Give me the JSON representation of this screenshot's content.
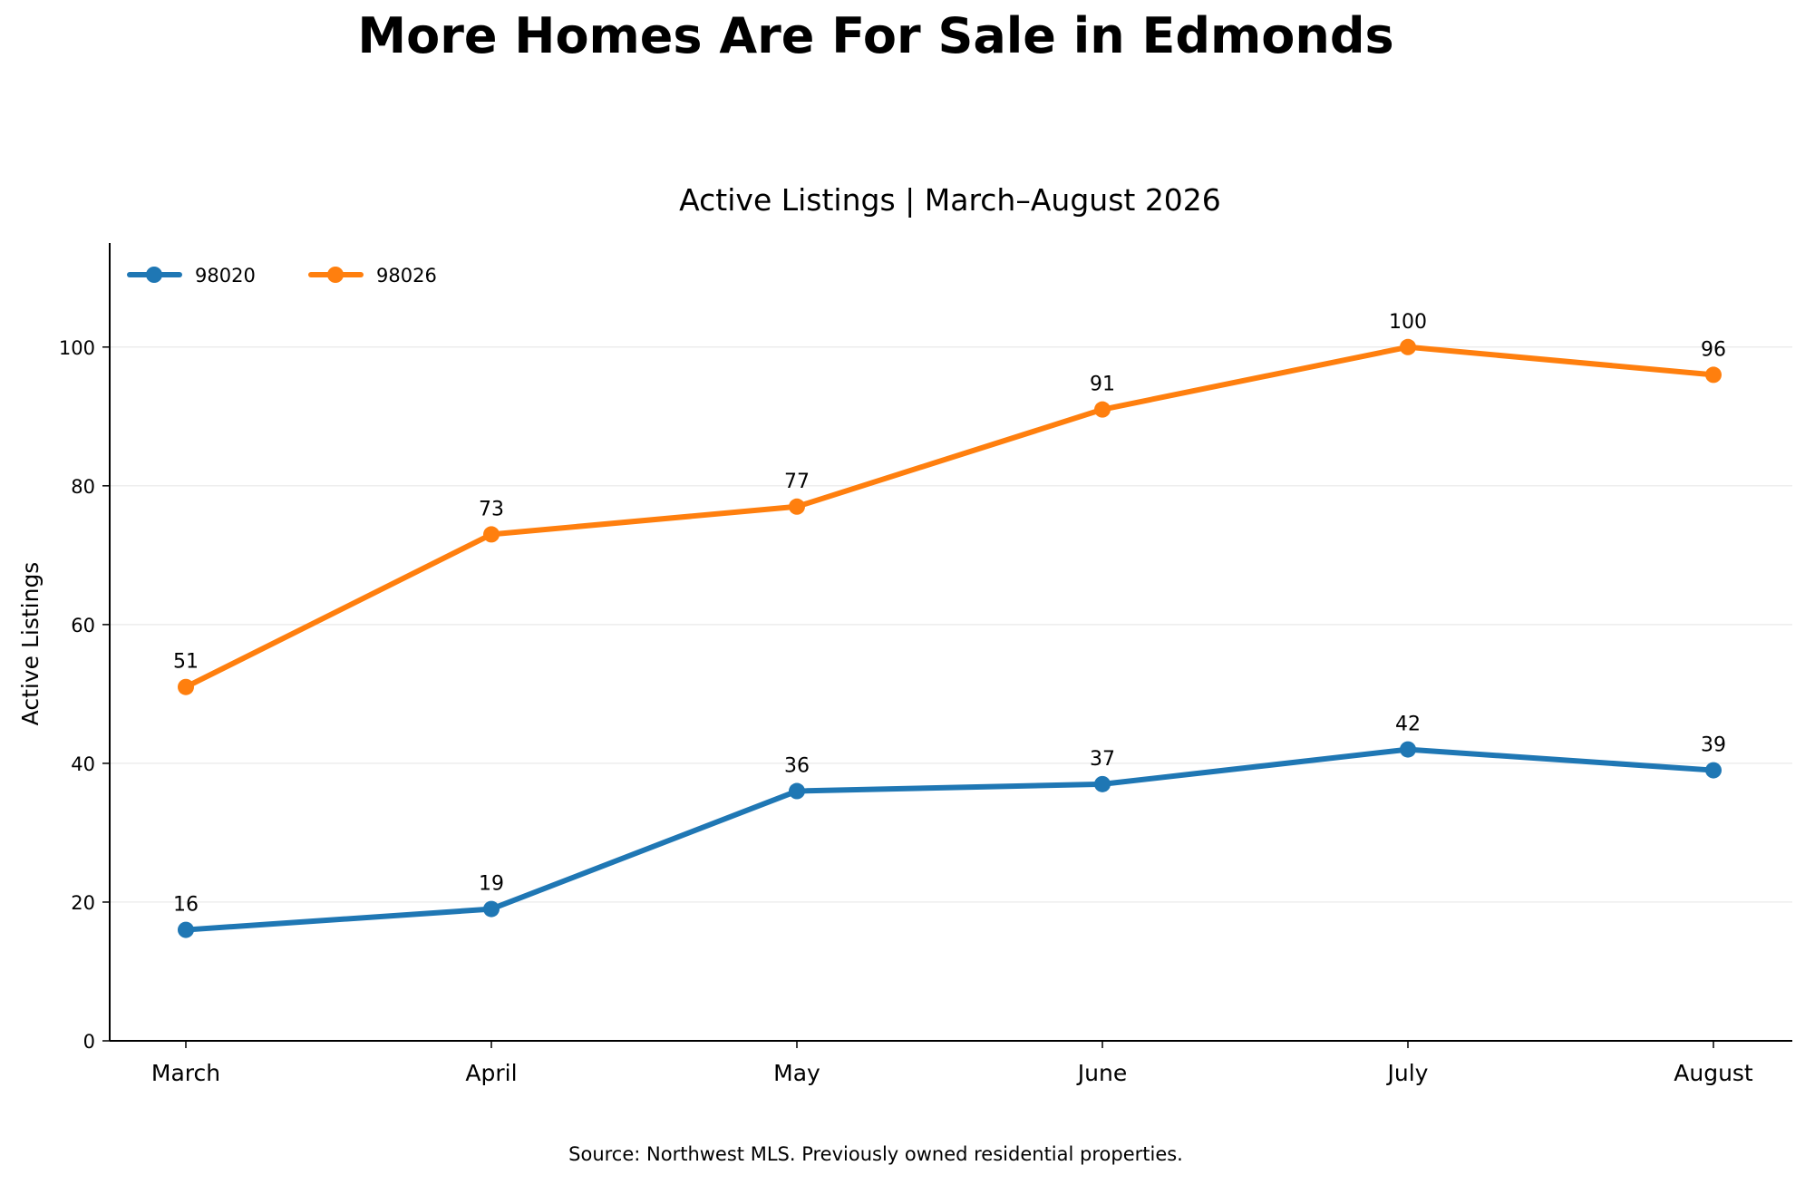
{
  "chart_data": {
    "type": "line",
    "title": "More Homes Are For Sale in Edmonds",
    "subtitle": "Active Listings | March–August 2026",
    "xlabel": "",
    "ylabel": "Active Listings",
    "categories": [
      "March",
      "April",
      "May",
      "June",
      "July",
      "August"
    ],
    "series": [
      {
        "name": "98020",
        "color": "#1f77b4",
        "values": [
          16,
          19,
          36,
          37,
          42,
          39
        ]
      },
      {
        "name": "98026",
        "color": "#ff7f0e",
        "values": [
          51,
          73,
          77,
          91,
          100,
          96
        ]
      }
    ],
    "ylim": [
      0,
      115
    ],
    "yticks": [
      0,
      20,
      40,
      60,
      80,
      100
    ],
    "grid": "horizontal",
    "legend": "top-left",
    "data_labels": true,
    "source": "Source: Northwest MLS. Previously owned residential properties."
  }
}
